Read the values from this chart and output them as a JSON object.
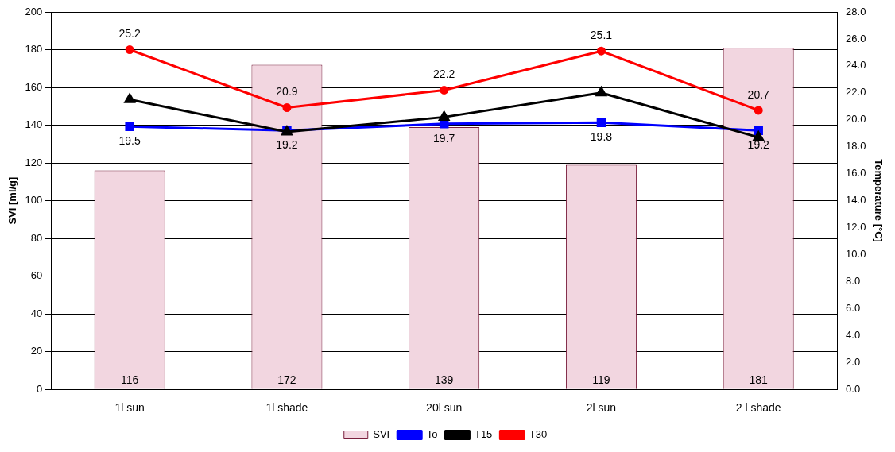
{
  "chart_data": {
    "type": "bar",
    "categories": [
      "1l sun",
      "1l shade",
      "20l sun",
      "2l sun",
      "2 l shade"
    ],
    "ylabel": "SVI [ml/g]",
    "y2label": "Temperature [°C]",
    "ylim": [
      0,
      200
    ],
    "yticks": [
      0,
      20,
      40,
      60,
      80,
      100,
      120,
      140,
      160,
      180,
      200
    ],
    "y2lim": [
      0,
      28
    ],
    "y2ticks": [
      {
        "value": 0,
        "label": "0.0"
      },
      {
        "value": 2,
        "label": "2.0"
      },
      {
        "value": 4,
        "label": "4.0"
      },
      {
        "value": 6,
        "label": "6.0"
      },
      {
        "value": 8,
        "label": "8.0"
      },
      {
        "value": 10,
        "label": "10.0"
      },
      {
        "value": 12,
        "label": "12.0"
      },
      {
        "value": 14,
        "label": "14.0"
      },
      {
        "value": 16,
        "label": "16.0"
      },
      {
        "value": 18,
        "label": "18.0"
      },
      {
        "value": 20,
        "label": "20.0"
      },
      {
        "value": 22,
        "label": "22.0"
      },
      {
        "value": 24,
        "label": "24.0"
      },
      {
        "value": 26,
        "label": "26.0"
      },
      {
        "value": 28,
        "label": "28.0"
      }
    ],
    "grid": "y",
    "legend": "bottom",
    "series": [
      {
        "name": "SVI",
        "color": "#f2d6e0",
        "values": [
          116,
          172,
          139,
          119,
          181
        ],
        "value_labels": [
          "116",
          "172",
          "139",
          "119",
          "181"
        ]
      },
      {
        "name": "To",
        "type": "line",
        "axis": "y2",
        "marker": "square",
        "color": "#0000ff",
        "values": [
          19.5,
          19.2,
          19.7,
          19.8,
          19.2
        ],
        "value_labels": [
          "19.5",
          "19.2",
          "19.7",
          "19.8",
          "19.2"
        ]
      },
      {
        "name": "T15",
        "type": "line",
        "axis": "y2",
        "marker": "triangle",
        "color": "#000000",
        "values": [
          21.5,
          19.1,
          20.2,
          22.0,
          18.7
        ]
      },
      {
        "name": "T30",
        "type": "line",
        "axis": "y2",
        "marker": "circle",
        "color": "#ff0000",
        "values": [
          25.2,
          20.9,
          22.2,
          25.1,
          20.7
        ],
        "value_labels": [
          "25.2",
          "20.9",
          "22.2",
          "25.1",
          "20.7"
        ]
      }
    ]
  }
}
